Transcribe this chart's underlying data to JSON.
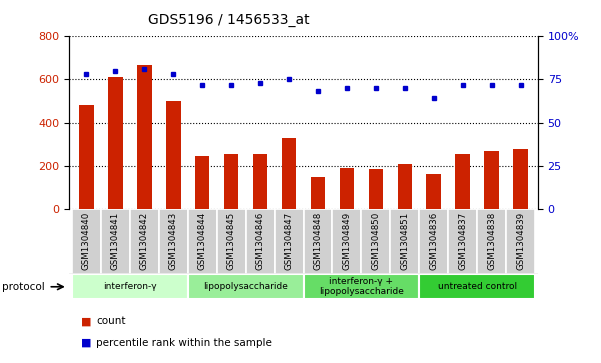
{
  "title": "GDS5196 / 1456533_at",
  "samples": [
    "GSM1304840",
    "GSM1304841",
    "GSM1304842",
    "GSM1304843",
    "GSM1304844",
    "GSM1304845",
    "GSM1304846",
    "GSM1304847",
    "GSM1304848",
    "GSM1304849",
    "GSM1304850",
    "GSM1304851",
    "GSM1304836",
    "GSM1304837",
    "GSM1304838",
    "GSM1304839"
  ],
  "counts": [
    480,
    610,
    665,
    500,
    245,
    252,
    252,
    330,
    148,
    188,
    185,
    208,
    160,
    252,
    270,
    278
  ],
  "percentiles": [
    78,
    80,
    81,
    78,
    72,
    72,
    73,
    75,
    68,
    70,
    70,
    70,
    64,
    72,
    72,
    72
  ],
  "ylim_left": [
    0,
    800
  ],
  "ylim_right": [
    0,
    100
  ],
  "yticks_left": [
    0,
    200,
    400,
    600,
    800
  ],
  "yticks_right": [
    0,
    25,
    50,
    75,
    100
  ],
  "groups": [
    {
      "label": "interferon-γ",
      "start": 0,
      "end": 4,
      "color": "#ccffcc"
    },
    {
      "label": "lipopolysaccharide",
      "start": 4,
      "end": 8,
      "color": "#99ee99"
    },
    {
      "label": "interferon-γ +\nlipopolysaccharide",
      "start": 8,
      "end": 12,
      "color": "#66dd66"
    },
    {
      "label": "untreated control",
      "start": 12,
      "end": 16,
      "color": "#33cc33"
    }
  ],
  "bar_color": "#cc2200",
  "dot_color": "#0000cc",
  "bar_width": 0.5,
  "tick_color_left": "#cc2200",
  "tick_color_right": "#0000cc",
  "cell_bg": "#d0d0d0",
  "cell_border": "#ffffff",
  "legend_items": [
    {
      "label": "count",
      "color": "#cc2200"
    },
    {
      "label": "percentile rank within the sample",
      "color": "#0000cc"
    }
  ],
  "protocol_label": "protocol"
}
